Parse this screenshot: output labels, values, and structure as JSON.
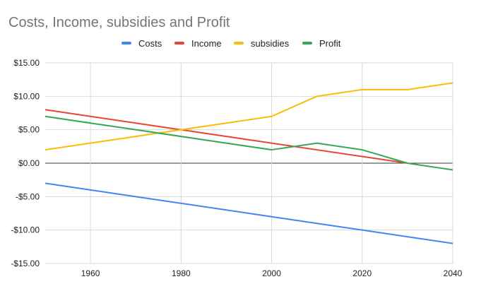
{
  "chart_data": {
    "type": "line",
    "title": "Costs, Income, subsidies and Profit",
    "xlabel": "",
    "ylabel": "",
    "x": [
      1950,
      1960,
      1970,
      1980,
      1990,
      2000,
      2010,
      2020,
      2030,
      2040
    ],
    "xlim": [
      1950,
      2040
    ],
    "ylim": [
      -15,
      15
    ],
    "x_ticks": [
      "1960",
      "1980",
      "2000",
      "2020",
      "2040"
    ],
    "y_ticks": [
      "$15.00",
      "$10.00",
      "$5.00",
      "$0.00",
      "-$5.00",
      "-$10.00",
      "-$15.00"
    ],
    "legend_position": "top",
    "grid": true,
    "series": [
      {
        "name": "Costs",
        "color": "#4285f4",
        "values": [
          -3,
          -4,
          -5,
          -6,
          -7,
          -8,
          -9,
          -10,
          -11,
          -12
        ]
      },
      {
        "name": "Income",
        "color": "#ea4335",
        "values": [
          8,
          7,
          6,
          5,
          4,
          3,
          2,
          1,
          0,
          null
        ]
      },
      {
        "name": "subsidies",
        "color": "#fbbc04",
        "values": [
          2,
          3,
          4,
          5,
          6,
          7,
          10,
          11,
          11,
          12
        ]
      },
      {
        "name": "Profit",
        "color": "#34a853",
        "values": [
          7,
          6,
          5,
          4,
          3,
          2,
          3,
          2,
          0,
          -1
        ]
      }
    ]
  }
}
